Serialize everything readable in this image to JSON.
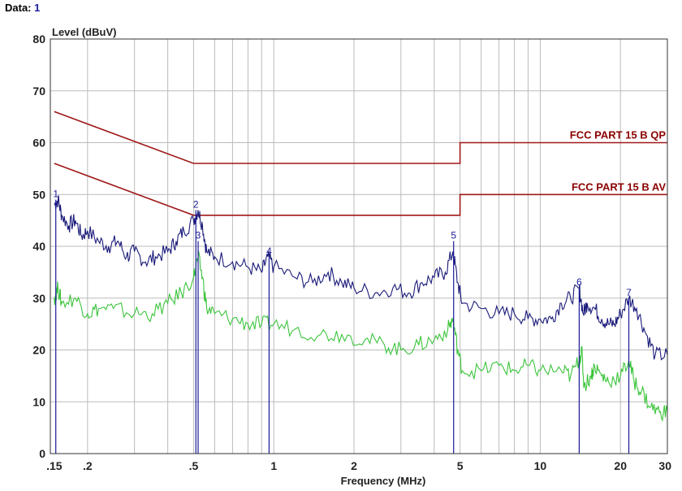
{
  "header": {
    "label": "Data:",
    "value": "1"
  },
  "chart_data": {
    "type": "line",
    "ylabel": "Level (dBuV)",
    "xlabel": "Frequency (MHz)",
    "x_scale": "log",
    "xlim": [
      0.145,
      30
    ],
    "ylim": [
      0,
      80
    ],
    "grid": true,
    "x_ticks": [
      {
        "v": 0.15,
        "label": ".15"
      },
      {
        "v": 0.2,
        "label": ".2"
      },
      {
        "v": 0.5,
        "label": ".5"
      },
      {
        "v": 1,
        "label": "1"
      },
      {
        "v": 2,
        "label": "2"
      },
      {
        "v": 5,
        "label": "5"
      },
      {
        "v": 10,
        "label": "10"
      },
      {
        "v": 20,
        "label": "20"
      },
      {
        "v": 30,
        "label": "30"
      }
    ],
    "y_ticks": [
      0,
      10,
      20,
      30,
      40,
      50,
      60,
      70,
      80
    ],
    "colors": {
      "limit": "#a01818",
      "qp_trace": "#1a1a7a",
      "av_trace": "#3cc43c",
      "grid": "#bbbbbb",
      "marker": "#1a1a9a"
    },
    "limits": [
      {
        "name": "FCC PART 15 B QP",
        "points": [
          [
            0.15,
            66
          ],
          [
            0.5,
            56
          ],
          [
            5,
            56
          ],
          [
            5,
            60
          ],
          [
            30,
            60
          ]
        ]
      },
      {
        "name": "FCC PART 15 B AV",
        "points": [
          [
            0.15,
            56
          ],
          [
            0.5,
            46
          ],
          [
            5,
            46
          ],
          [
            5,
            50
          ],
          [
            30,
            50
          ]
        ]
      }
    ],
    "series": [
      {
        "role": "qp_trace",
        "points": [
          [
            0.15,
            48
          ],
          [
            0.155,
            49
          ],
          [
            0.16,
            46
          ],
          [
            0.17,
            44
          ],
          [
            0.18,
            45
          ],
          [
            0.19,
            42
          ],
          [
            0.2,
            43
          ],
          [
            0.22,
            41
          ],
          [
            0.24,
            40
          ],
          [
            0.26,
            41
          ],
          [
            0.28,
            38
          ],
          [
            0.3,
            39
          ],
          [
            0.33,
            37
          ],
          [
            0.36,
            38
          ],
          [
            0.4,
            39
          ],
          [
            0.43,
            41
          ],
          [
            0.46,
            43
          ],
          [
            0.5,
            45
          ],
          [
            0.52,
            47
          ],
          [
            0.54,
            44
          ],
          [
            0.56,
            39
          ],
          [
            0.6,
            38
          ],
          [
            0.7,
            37
          ],
          [
            0.8,
            36
          ],
          [
            0.9,
            35
          ],
          [
            0.95,
            38
          ],
          [
            1.0,
            36
          ],
          [
            1.2,
            34
          ],
          [
            1.4,
            33
          ],
          [
            1.6,
            35
          ],
          [
            1.8,
            33
          ],
          [
            2.0,
            32
          ],
          [
            2.4,
            31
          ],
          [
            2.8,
            32
          ],
          [
            3.2,
            31
          ],
          [
            3.6,
            33
          ],
          [
            4.0,
            34
          ],
          [
            4.4,
            35
          ],
          [
            4.7,
            39
          ],
          [
            4.9,
            33
          ],
          [
            5.1,
            29
          ],
          [
            6,
            28
          ],
          [
            7,
            27
          ],
          [
            8,
            27
          ],
          [
            9,
            26
          ],
          [
            10,
            26
          ],
          [
            11,
            26
          ],
          [
            12,
            29
          ],
          [
            13,
            30
          ],
          [
            14,
            32
          ],
          [
            14.5,
            27
          ],
          [
            15,
            29
          ],
          [
            16,
            28
          ],
          [
            17,
            26
          ],
          [
            18,
            25
          ],
          [
            19,
            25
          ],
          [
            20,
            27
          ],
          [
            21.5,
            30
          ],
          [
            23,
            28
          ],
          [
            25,
            23
          ],
          [
            27,
            19
          ],
          [
            30,
            19
          ]
        ]
      },
      {
        "role": "av_trace",
        "points": [
          [
            0.15,
            30
          ],
          [
            0.155,
            32
          ],
          [
            0.16,
            29
          ],
          [
            0.18,
            30
          ],
          [
            0.2,
            27
          ],
          [
            0.22,
            28
          ],
          [
            0.25,
            28
          ],
          [
            0.3,
            27
          ],
          [
            0.35,
            27
          ],
          [
            0.4,
            29
          ],
          [
            0.45,
            31
          ],
          [
            0.5,
            34
          ],
          [
            0.52,
            38
          ],
          [
            0.54,
            34
          ],
          [
            0.56,
            28
          ],
          [
            0.6,
            27
          ],
          [
            0.7,
            26
          ],
          [
            0.8,
            25
          ],
          [
            0.9,
            25
          ],
          [
            1.0,
            25
          ],
          [
            1.2,
            24
          ],
          [
            1.5,
            23
          ],
          [
            1.8,
            23
          ],
          [
            2.2,
            22
          ],
          [
            2.6,
            21
          ],
          [
            3.0,
            20
          ],
          [
            3.5,
            21
          ],
          [
            4.0,
            22
          ],
          [
            4.5,
            24
          ],
          [
            4.7,
            26
          ],
          [
            4.9,
            20
          ],
          [
            5.1,
            16
          ],
          [
            6,
            16
          ],
          [
            7,
            17
          ],
          [
            8,
            16
          ],
          [
            9,
            17
          ],
          [
            10,
            16
          ],
          [
            12,
            16
          ],
          [
            13,
            15
          ],
          [
            14,
            18
          ],
          [
            14.3,
            20
          ],
          [
            14.6,
            13
          ],
          [
            15.5,
            15
          ],
          [
            16,
            17
          ],
          [
            17,
            15
          ],
          [
            18,
            14
          ],
          [
            20,
            15
          ],
          [
            21.5,
            18
          ],
          [
            22.5,
            14
          ],
          [
            24,
            12
          ],
          [
            26,
            9
          ],
          [
            28,
            8
          ],
          [
            30,
            8
          ]
        ]
      }
    ],
    "markers": [
      {
        "label": "1",
        "x": 0.152,
        "y": 49
      },
      {
        "label": "2",
        "x": 0.51,
        "y": 47
      },
      {
        "label": "3",
        "x": 0.52,
        "y": 41
      },
      {
        "label": "4",
        "x": 0.96,
        "y": 38
      },
      {
        "label": "5",
        "x": 4.73,
        "y": 41
      },
      {
        "label": "6",
        "x": 14.0,
        "y": 32
      },
      {
        "label": "7",
        "x": 21.5,
        "y": 30
      }
    ]
  }
}
